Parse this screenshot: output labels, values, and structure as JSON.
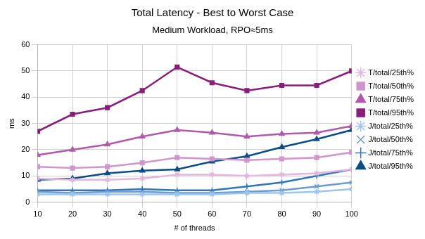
{
  "chart_data": {
    "type": "line",
    "title": "Total Latency - Best to Worst Case",
    "subtitle": "Medium Workload, RPO≈5ms",
    "x_label": "# of threads",
    "y_label": "ms",
    "x": [
      10,
      20,
      30,
      40,
      50,
      60,
      70,
      80,
      90,
      100
    ],
    "xlim": [
      10,
      100
    ],
    "xticks": [
      10,
      20,
      30,
      40,
      50,
      60,
      70,
      80,
      90,
      100
    ],
    "ylim": [
      0,
      60
    ],
    "yticks": [
      0,
      10,
      20,
      30,
      40,
      50,
      60
    ],
    "grid": true,
    "legend": "right",
    "series": [
      {
        "name": "T/total/25th%",
        "color": "#e3b5df",
        "marker": "star",
        "values": [
          9,
          8.5,
          8.5,
          9,
          10.5,
          10.5,
          10,
          10.5,
          11,
          12.5
        ]
      },
      {
        "name": "T/total/50th%",
        "color": "#d195cd",
        "marker": "rect",
        "values": [
          13.5,
          13,
          13.5,
          15,
          17,
          16.5,
          16,
          16.5,
          17,
          19
        ]
      },
      {
        "name": "T/total/75th%",
        "color": "#b05aab",
        "marker": "triangle",
        "values": [
          18,
          20,
          22,
          25,
          27.5,
          26.5,
          25,
          26,
          26.5,
          29
        ]
      },
      {
        "name": "T/total/95th%",
        "color": "#8a1c7c",
        "marker": "rect",
        "values": [
          27,
          33.5,
          36,
          42.5,
          51.5,
          45.5,
          42.5,
          44.5,
          44.5,
          50
        ]
      },
      {
        "name": "J/total/25th%",
        "color": "#9cc5ee",
        "marker": "star",
        "values": [
          3,
          3,
          3,
          3,
          3,
          3,
          3.5,
          3.5,
          4,
          5
        ]
      },
      {
        "name": "J/total/50th%",
        "color": "#6a9bd4",
        "marker": "crossRot",
        "values": [
          4,
          3.5,
          4,
          4,
          3.5,
          3.5,
          4,
          4.5,
          6,
          7.5
        ]
      },
      {
        "name": "J/total/75th%",
        "color": "#2e75ba",
        "marker": "cross",
        "values": [
          4.5,
          4.5,
          4.5,
          5,
          4.5,
          4.5,
          6,
          7.5,
          10,
          12.5
        ]
      },
      {
        "name": "J/total/95th%",
        "color": "#0b4d87",
        "marker": "triangle",
        "values": [
          8.5,
          9,
          11,
          12,
          12.5,
          15.5,
          17.5,
          21,
          24,
          27.5
        ]
      }
    ]
  }
}
